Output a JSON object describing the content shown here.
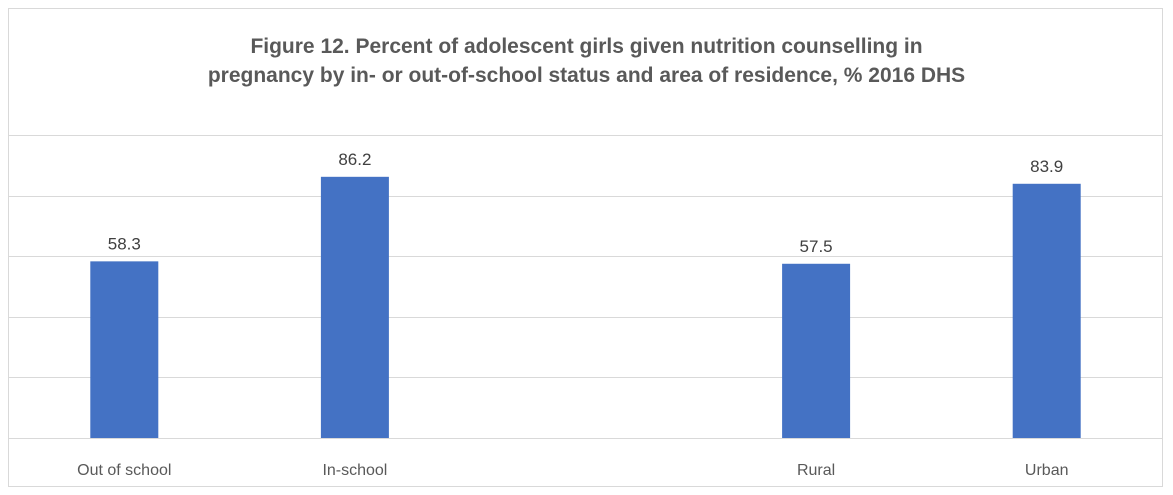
{
  "chart_data": {
    "type": "bar",
    "title_lines": [
      "Figure 12. Percent of adolescent girls given nutrition counselling in",
      "pregnancy by in- or out-of-school status and area of residence, % 2016 DHS"
    ],
    "categories": [
      "Out of school",
      "In-school",
      "",
      "Rural",
      "Urban"
    ],
    "values": [
      58.3,
      86.2,
      null,
      57.5,
      83.9
    ],
    "value_labels": [
      "58.3",
      "86.2",
      "",
      "57.5",
      "83.9"
    ],
    "xlabel": "",
    "ylabel": "",
    "ylim": [
      0,
      100
    ],
    "gridlines": true,
    "y_axis_labels_visible": false,
    "legend": "none",
    "bar_color": "#4472C4",
    "gridline_color": "#d9d9d9"
  }
}
